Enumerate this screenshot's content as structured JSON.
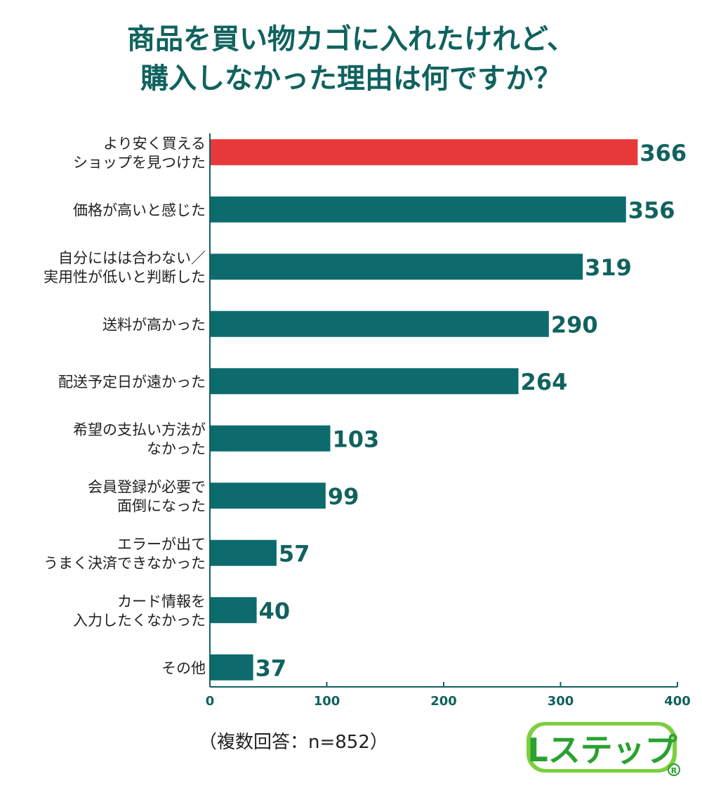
{
  "title_lines": [
    "商品を買い物カゴに入れたけれど、",
    "購入しなかった理由は何ですか？"
  ],
  "note": "（複数回答：n=852）",
  "logo_text": "Lステップ",
  "colors": {
    "title": "#10625e",
    "bar": "#0d6b6e",
    "highlight": "#e8393a",
    "axis": "#10625e",
    "label": "#222222"
  },
  "chart_data": {
    "type": "bar",
    "orientation": "horizontal",
    "categories": [
      [
        "より安く買える",
        "ショップを見つけた"
      ],
      [
        "価格が高いと感じた"
      ],
      [
        "自分にはは合わない／",
        "実用性が低いと判断した"
      ],
      [
        "送料が高かった"
      ],
      [
        "配送予定日が遠かった"
      ],
      [
        "希望の支払い方法が",
        "なかった"
      ],
      [
        "会員登録が必要で",
        "面倒になった"
      ],
      [
        "エラーが出て",
        "うまく決済できなかった"
      ],
      [
        "カード情報を",
        "入力したくなかった"
      ],
      [
        "その他"
      ]
    ],
    "values": [
      366,
      356,
      319,
      290,
      264,
      103,
      99,
      57,
      40,
      37
    ],
    "value_labels": [
      "366",
      "356",
      "319",
      "290",
      "264",
      "103",
      "99",
      "57",
      "40",
      "37"
    ],
    "highlight_index": 0,
    "xlim": [
      0,
      400
    ],
    "xticks": [
      "0",
      "100",
      "200",
      "300",
      "400"
    ],
    "grid": false
  }
}
